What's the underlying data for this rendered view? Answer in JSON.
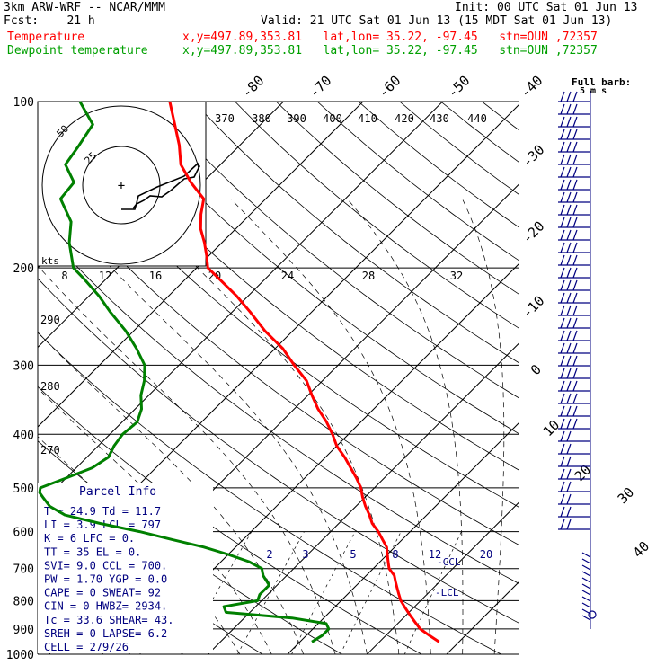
{
  "header": {
    "model": "3km ARW-WRF -- NCAR/MMM",
    "init": "Init: 00 UTC Sat 01 Jun 13",
    "fcst": "Fcst:    21 h",
    "valid": "Valid: 21 UTC Sat 01 Jun 13 (15 MDT Sat 01 Jun 13)",
    "temp_label": "Temperature",
    "temp_info": "x,y=497.89,353.81   lat,lon= 35.22, -97.45   stn=OUN ,72357",
    "dew_label": "Dewpoint temperature",
    "dew_info": "x,y=497.89,353.81   lat,lon= 35.22, -97.45   stn=OUN ,72357"
  },
  "colors": {
    "temperature": "#ff0000",
    "dewpoint": "#008000",
    "info": "#000080",
    "wind": "#000080"
  },
  "barb_legend": {
    "title": "Full barb:",
    "units": "5 m s"
  },
  "parcel_info": {
    "title": "Parcel Info",
    "rows": [
      "T  =   24.9  Td =  11.7",
      "LI =    3.9  LCL =  797",
      "K  =      6  LFC =    0.",
      "TT =     35  EL  =    0.",
      "SVI=    9.0  CCL =  700.",
      "PW =   1.70  YGP =  0.0",
      "CAPE =    0  SWEAT=  92",
      "CIN =     0  HWBZ= 2934.",
      "Tc =   33.6  SHEAR=  43.",
      "SREH =    0  LAPSE=  6.2",
      "CELL = 279/26"
    ]
  },
  "hodograph": {
    "speed_unit": "kts",
    "rings": [
      "50",
      "25"
    ]
  },
  "annotations": {
    "ccl": "CCL",
    "lcl": "LCL"
  },
  "chart_data": {
    "type": "line",
    "subtype": "skew-T log-P",
    "y_axis": {
      "label": "",
      "scale": "log",
      "ticks": [
        100,
        200,
        300,
        400,
        500,
        600,
        700,
        800,
        900,
        1000
      ],
      "range": [
        1000,
        100
      ]
    },
    "isotherms": [
      -80,
      -70,
      -60,
      -50,
      -40,
      -30,
      -20,
      -10,
      0,
      10,
      20,
      30,
      40
    ],
    "isotherm_labels": [
      "-80",
      "-70",
      "-60",
      "-50",
      "-40",
      "-30",
      "-20",
      "-10",
      "0",
      "10",
      "20",
      "30",
      "40"
    ],
    "mixing_ratio_labels": [
      "2",
      "3",
      "5",
      "8",
      "12",
      "20"
    ],
    "top_theta_labels": [
      "370",
      "380",
      "390",
      "400",
      "410",
      "420",
      "430",
      "440"
    ],
    "mid_theta_labels": [
      "8",
      "12",
      "16",
      "20",
      "24",
      "28",
      "32"
    ],
    "left_theta_labels": [
      "290",
      "280",
      "270"
    ],
    "series": [
      {
        "name": "Temperature",
        "points": [
          [
            950,
            27.5
          ],
          [
            925,
            25.5
          ],
          [
            900,
            23.5
          ],
          [
            875,
            22.0
          ],
          [
            850,
            20.5
          ],
          [
            825,
            19.0
          ],
          [
            800,
            17.5
          ],
          [
            780,
            16.5
          ],
          [
            760,
            15.5
          ],
          [
            740,
            14.5
          ],
          [
            720,
            13.5
          ],
          [
            700,
            12.0
          ],
          [
            680,
            11.0
          ],
          [
            660,
            10.0
          ],
          [
            640,
            9.0
          ],
          [
            620,
            7.5
          ],
          [
            600,
            6.0
          ],
          [
            580,
            4.2
          ],
          [
            560,
            2.8
          ],
          [
            540,
            1.2
          ],
          [
            520,
            -0.3
          ],
          [
            500,
            -1.7
          ],
          [
            480,
            -3.5
          ],
          [
            460,
            -5.5
          ],
          [
            440,
            -7.6
          ],
          [
            420,
            -10.0
          ],
          [
            400,
            -12.0
          ],
          [
            380,
            -14.3
          ],
          [
            360,
            -17.0
          ],
          [
            340,
            -19.5
          ],
          [
            320,
            -22.0
          ],
          [
            300,
            -25.5
          ],
          [
            280,
            -29.0
          ],
          [
            260,
            -33.5
          ],
          [
            240,
            -37.8
          ],
          [
            225,
            -41.4
          ],
          [
            210,
            -45.6
          ],
          [
            200,
            -48.6
          ],
          [
            190,
            -50.3
          ],
          [
            180,
            -52.2
          ],
          [
            170,
            -54.4
          ],
          [
            160,
            -56.2
          ],
          [
            150,
            -57.8
          ],
          [
            140,
            -61.5
          ],
          [
            130,
            -65.0
          ],
          [
            120,
            -67.6
          ],
          [
            110,
            -70.8
          ],
          [
            100,
            -74.3
          ]
        ]
      },
      {
        "name": "Dewpoint temperature",
        "points": [
          [
            950,
            11.5
          ],
          [
            925,
            12.0
          ],
          [
            900,
            12.0
          ],
          [
            880,
            11.0
          ],
          [
            860,
            6.0
          ],
          [
            840,
            -3.0
          ],
          [
            820,
            -4.0
          ],
          [
            800,
            -0.5
          ],
          [
            780,
            -1.0
          ],
          [
            750,
            -1.0
          ],
          [
            720,
            -3.0
          ],
          [
            700,
            -4.0
          ],
          [
            680,
            -6.5
          ],
          [
            660,
            -10.0
          ],
          [
            640,
            -14.0
          ],
          [
            620,
            -19.0
          ],
          [
            600,
            -24.0
          ],
          [
            580,
            -30.0
          ],
          [
            560,
            -35.5
          ],
          [
            540,
            -38.5
          ],
          [
            520,
            -40.5
          ],
          [
            510,
            -41.5
          ],
          [
            500,
            -42.0
          ],
          [
            480,
            -40.0
          ],
          [
            460,
            -38.0
          ],
          [
            440,
            -37.3
          ],
          [
            420,
            -38.0
          ],
          [
            400,
            -38.4
          ],
          [
            380,
            -38.1
          ],
          [
            360,
            -39.2
          ],
          [
            340,
            -41.0
          ],
          [
            320,
            -42.4
          ],
          [
            300,
            -44.3
          ],
          [
            280,
            -47.4
          ],
          [
            260,
            -51.0
          ],
          [
            240,
            -55.4
          ],
          [
            225,
            -58.7
          ],
          [
            210,
            -62.6
          ],
          [
            200,
            -65.5
          ],
          [
            180,
            -69.2
          ],
          [
            165,
            -71.6
          ],
          [
            150,
            -75.8
          ],
          [
            140,
            -76.2
          ],
          [
            130,
            -79.5
          ],
          [
            120,
            -80.2
          ],
          [
            110,
            -81.1
          ],
          [
            100,
            -85.6
          ]
        ]
      }
    ]
  }
}
